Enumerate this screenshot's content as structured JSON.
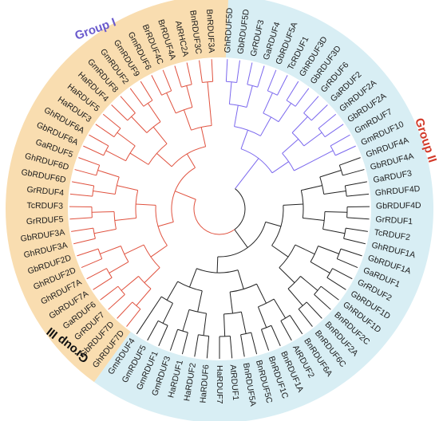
{
  "groups": [
    {
      "label": "Group I",
      "color": "#6a5acd"
    },
    {
      "label": "Group II",
      "color": "#d23a2a"
    },
    {
      "label": "Group III",
      "color": "#111111"
    }
  ],
  "background_colors": {
    "group_i_iii": "#d8eef4",
    "group_ii": "#f9ddb0"
  },
  "branch_colors": {
    "group_i": "#7b68ee",
    "group_ii": "#e0513e",
    "group_iii": "#222222"
  },
  "leaves": [
    {
      "label": "GhRDUF5D",
      "group": 1
    },
    {
      "label": "GbRDUF5D",
      "group": 1
    },
    {
      "label": "GrRDUF3",
      "group": 1
    },
    {
      "label": "GaRDUF4",
      "group": 1
    },
    {
      "label": "GbRDUF5A",
      "group": 1
    },
    {
      "label": "TcRDUF1",
      "group": 1
    },
    {
      "label": "GhRDUF3D",
      "group": 1
    },
    {
      "label": "GbRDUF3D",
      "group": 1
    },
    {
      "label": "GrRDUF6",
      "group": 1
    },
    {
      "label": "GaRDUF2",
      "group": 1
    },
    {
      "label": "GhRDUF2A",
      "group": 1
    },
    {
      "label": "GbRDUF2A",
      "group": 1
    },
    {
      "label": "GmRDUF7",
      "group": 1
    },
    {
      "label": "GmRDUF10",
      "group": 1
    },
    {
      "label": "GhRDUF4A",
      "group": 3
    },
    {
      "label": "GbRDUF4A",
      "group": 3
    },
    {
      "label": "GaRDUF3",
      "group": 3
    },
    {
      "label": "GhRDUF4D",
      "group": 3
    },
    {
      "label": "GbRDUF4D",
      "group": 3
    },
    {
      "label": "GrRDUF1",
      "group": 3
    },
    {
      "label": "TcRDUF2",
      "group": 3
    },
    {
      "label": "GhRDUF1A",
      "group": 3
    },
    {
      "label": "GbRDUF1A",
      "group": 3
    },
    {
      "label": "GaRDUF1",
      "group": 3
    },
    {
      "label": "GrRDUF2",
      "group": 3
    },
    {
      "label": "GbRDUF1D",
      "group": 3
    },
    {
      "label": "GhRDUF1D",
      "group": 3
    },
    {
      "label": "BnRDUF2C",
      "group": 3
    },
    {
      "label": "BnRDUF2A",
      "group": 3
    },
    {
      "label": "BnRDUF6C",
      "group": 3
    },
    {
      "label": "BnRDUF6A",
      "group": 3
    },
    {
      "label": "AtRDUF2",
      "group": 3
    },
    {
      "label": "BnRDUF1A",
      "group": 3
    },
    {
      "label": "BnRDUF1C",
      "group": 3
    },
    {
      "label": "BnRDUF5C",
      "group": 3
    },
    {
      "label": "BnRDUF5A",
      "group": 3
    },
    {
      "label": "AtRDUF1",
      "group": 3
    },
    {
      "label": "HaRDUF7",
      "group": 3
    },
    {
      "label": "HaRDUF6",
      "group": 3
    },
    {
      "label": "HaRDUF2",
      "group": 3
    },
    {
      "label": "HaRDUF1",
      "group": 3
    },
    {
      "label": "GmRDUF3",
      "group": 3
    },
    {
      "label": "GmRDUF1",
      "group": 3
    },
    {
      "label": "GmRDUF5",
      "group": 3
    },
    {
      "label": "GmRDUF4",
      "group": 3
    },
    {
      "label": "GhRDUF7D",
      "group": 2
    },
    {
      "label": "GbRDUF7D",
      "group": 2
    },
    {
      "label": "GrRDUF7",
      "group": 2
    },
    {
      "label": "GaRDUF6",
      "group": 2
    },
    {
      "label": "GbRDUF7A",
      "group": 2
    },
    {
      "label": "GhRDUF7A",
      "group": 2
    },
    {
      "label": "GhRDUF2D",
      "group": 2
    },
    {
      "label": "GbRDUF2D",
      "group": 2
    },
    {
      "label": "GhRDUF3A",
      "group": 2
    },
    {
      "label": "GbRDUF3A",
      "group": 2
    },
    {
      "label": "GrRDUF5",
      "group": 2
    },
    {
      "label": "TcRDUF3",
      "group": 2
    },
    {
      "label": "GrRDUF4",
      "group": 2
    },
    {
      "label": "GbRDUF6D",
      "group": 2
    },
    {
      "label": "GhRDUF6D",
      "group": 2
    },
    {
      "label": "GaRDUF5",
      "group": 2
    },
    {
      "label": "GbRDUF6A",
      "group": 2
    },
    {
      "label": "GhRDUF6A",
      "group": 2
    },
    {
      "label": "HaRDUF3",
      "group": 2
    },
    {
      "label": "HaRDUF5",
      "group": 2
    },
    {
      "label": "HaRDUF4",
      "group": 2
    },
    {
      "label": "GmRDUF8",
      "group": 2
    },
    {
      "label": "GmRDUF2",
      "group": 2
    },
    {
      "label": "GmRDUF9",
      "group": 2
    },
    {
      "label": "GmRDUF6",
      "group": 2
    },
    {
      "label": "BrRDUF4C",
      "group": 2
    },
    {
      "label": "BrRDUF4A",
      "group": 2
    },
    {
      "label": "AtRHC2A",
      "group": 2
    },
    {
      "label": "BnRDUF3C",
      "group": 2
    },
    {
      "label": "BnRDUF3A",
      "group": 2
    }
  ]
}
